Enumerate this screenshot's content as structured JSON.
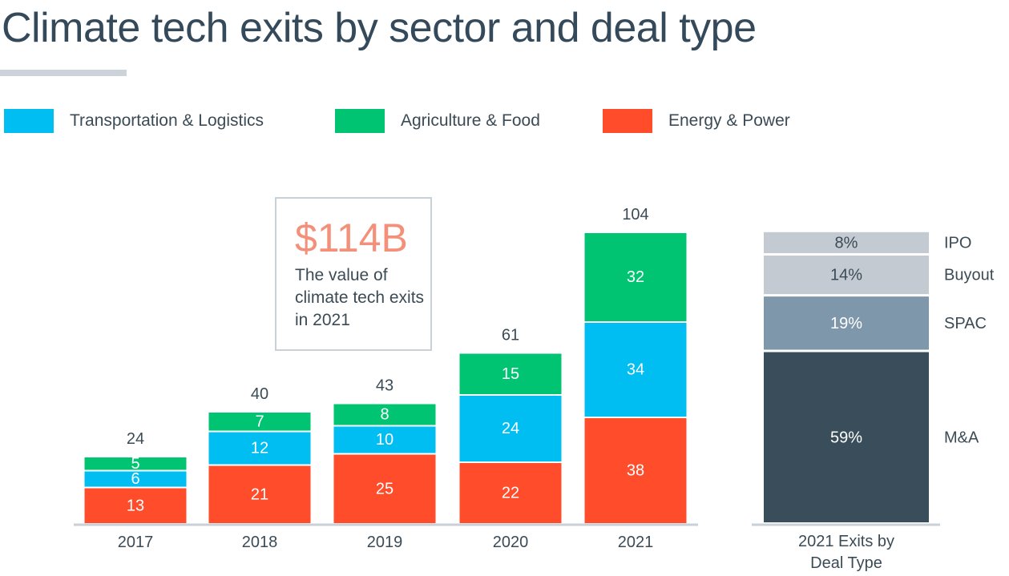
{
  "title": "Climate tech exits by sector and deal type",
  "legend": [
    {
      "label": "Transportation & Logistics",
      "color": "#00bdf2"
    },
    {
      "label": "Agriculture & Food",
      "color": "#00c472"
    },
    {
      "label": "Energy & Power",
      "color": "#ff4d2b"
    }
  ],
  "callout": {
    "value": "$114B",
    "description": "The value of climate tech exits in 2021"
  },
  "chart_data": [
    {
      "type": "bar",
      "stacked": true,
      "title": "Climate tech exits by sector",
      "categories": [
        "2017",
        "2018",
        "2019",
        "2020",
        "2021"
      ],
      "series": [
        {
          "name": "Energy & Power",
          "color": "#ff4d2b",
          "values": [
            13,
            21,
            25,
            22,
            38
          ]
        },
        {
          "name": "Transportation & Logistics",
          "color": "#00bdf2",
          "values": [
            6,
            12,
            10,
            24,
            34
          ]
        },
        {
          "name": "Agriculture & Food",
          "color": "#00c472",
          "values": [
            5,
            7,
            8,
            15,
            32
          ]
        }
      ],
      "totals": [
        24,
        40,
        43,
        61,
        104
      ],
      "xlabel": "",
      "ylabel": "",
      "ylim": [
        0,
        104
      ],
      "grid": false
    },
    {
      "type": "bar",
      "stacked": true,
      "title": "2021 Exits by Deal Type",
      "category_label": "2021 Exits by Deal Type",
      "unit": "%",
      "segments": [
        {
          "name": "M&A",
          "value": 59,
          "label": "59%",
          "color": "#394d5b"
        },
        {
          "name": "SPAC",
          "value": 19,
          "label": "19%",
          "color": "#7f97ab"
        },
        {
          "name": "Buyout",
          "value": 14,
          "label": "14%",
          "color": "#c3cad1"
        },
        {
          "name": "IPO",
          "value": 8,
          "label": "8%",
          "color": "#c3cad1"
        }
      ]
    }
  ]
}
